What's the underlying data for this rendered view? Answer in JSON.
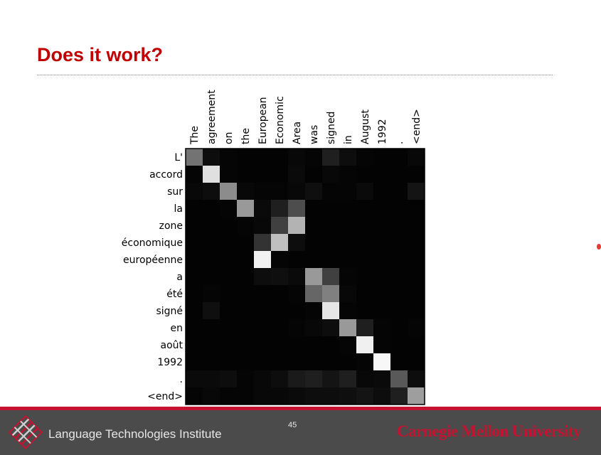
{
  "slide": {
    "title": "Does it work?",
    "page_number": "45"
  },
  "footer": {
    "institute": "Language Technologies Institute",
    "university": "Carnegie Mellon University",
    "accent_color": "#c41230",
    "bar_color": "#4b4b4b",
    "logo_icon": "lti-logo-icon"
  },
  "chart_data": {
    "type": "heatmap",
    "title": "",
    "xlabel": "",
    "ylabel": "",
    "x_labels": [
      "The",
      "agreement",
      "on",
      "the",
      "European",
      "Economic",
      "Area",
      "was",
      "signed",
      "in",
      "August",
      "1992",
      ".",
      "<end>"
    ],
    "y_labels": [
      "L'",
      "accord",
      "sur",
      "la",
      "zone",
      "économique",
      "européenne",
      "a",
      "été",
      "signé",
      "en",
      "août",
      "1992",
      ".",
      "<end>"
    ],
    "value_range": [
      0,
      1
    ],
    "colormap": "grayscale (black = 0, white = 1)",
    "values": [
      [
        0.45,
        0.05,
        0.02,
        0.01,
        0.01,
        0.01,
        0.03,
        0.02,
        0.12,
        0.05,
        0.02,
        0.01,
        0.01,
        0.03
      ],
      [
        0.02,
        0.88,
        0.02,
        0.01,
        0.01,
        0.01,
        0.04,
        0.01,
        0.03,
        0.02,
        0.01,
        0.01,
        0.01,
        0.01
      ],
      [
        0.03,
        0.05,
        0.55,
        0.03,
        0.02,
        0.02,
        0.03,
        0.06,
        0.02,
        0.02,
        0.04,
        0.01,
        0.01,
        0.08
      ],
      [
        0.01,
        0.01,
        0.02,
        0.6,
        0.04,
        0.12,
        0.3,
        0.01,
        0.01,
        0.01,
        0.01,
        0.01,
        0.01,
        0.01
      ],
      [
        0.01,
        0.01,
        0.01,
        0.02,
        0.03,
        0.25,
        0.7,
        0.01,
        0.01,
        0.01,
        0.01,
        0.01,
        0.01,
        0.01
      ],
      [
        0.01,
        0.01,
        0.01,
        0.01,
        0.2,
        0.75,
        0.05,
        0.01,
        0.01,
        0.01,
        0.01,
        0.01,
        0.01,
        0.01
      ],
      [
        0.01,
        0.01,
        0.01,
        0.01,
        0.95,
        0.02,
        0.01,
        0.01,
        0.01,
        0.01,
        0.01,
        0.01,
        0.01,
        0.01
      ],
      [
        0.01,
        0.01,
        0.01,
        0.01,
        0.05,
        0.06,
        0.04,
        0.6,
        0.25,
        0.02,
        0.01,
        0.01,
        0.01,
        0.01
      ],
      [
        0.01,
        0.02,
        0.01,
        0.01,
        0.01,
        0.01,
        0.02,
        0.4,
        0.5,
        0.03,
        0.01,
        0.01,
        0.01,
        0.01
      ],
      [
        0.01,
        0.06,
        0.01,
        0.01,
        0.01,
        0.01,
        0.01,
        0.02,
        0.9,
        0.02,
        0.01,
        0.01,
        0.01,
        0.01
      ],
      [
        0.01,
        0.01,
        0.01,
        0.01,
        0.01,
        0.01,
        0.02,
        0.03,
        0.05,
        0.6,
        0.12,
        0.02,
        0.01,
        0.02
      ],
      [
        0.01,
        0.01,
        0.01,
        0.01,
        0.01,
        0.01,
        0.01,
        0.01,
        0.01,
        0.02,
        0.94,
        0.02,
        0.01,
        0.01
      ],
      [
        0.01,
        0.01,
        0.01,
        0.01,
        0.01,
        0.01,
        0.01,
        0.01,
        0.01,
        0.01,
        0.02,
        0.97,
        0.01,
        0.01
      ],
      [
        0.04,
        0.04,
        0.05,
        0.02,
        0.03,
        0.05,
        0.1,
        0.12,
        0.08,
        0.12,
        0.03,
        0.04,
        0.35,
        0.05
      ],
      [
        0.02,
        0.03,
        0.02,
        0.02,
        0.03,
        0.03,
        0.04,
        0.05,
        0.05,
        0.06,
        0.08,
        0.05,
        0.12,
        0.62
      ]
    ]
  }
}
